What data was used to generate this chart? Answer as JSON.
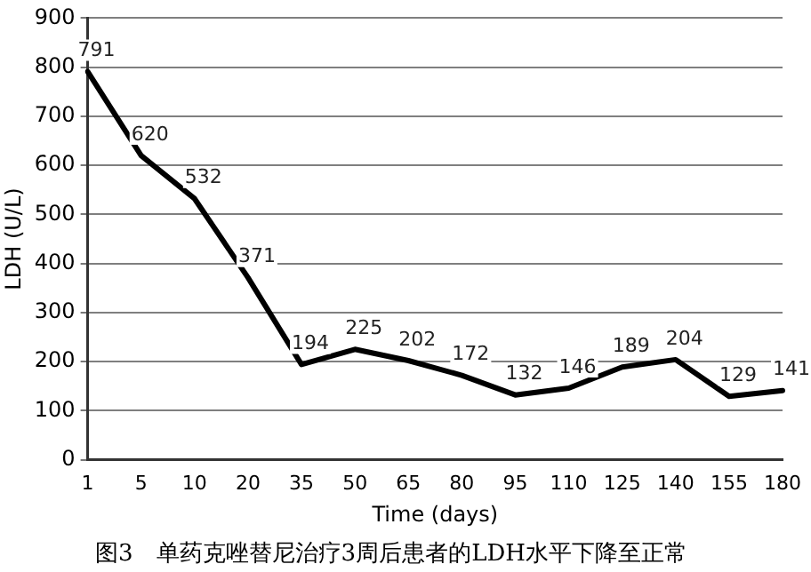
{
  "chart_data": {
    "type": "line",
    "title": "图3　单药克唑替尼治疗3周后患者的LDH水平下降至正常",
    "xlabel": "Time (days)",
    "ylabel": "LDH (U/L)",
    "categories": [
      "1",
      "5",
      "10",
      "20",
      "35",
      "50",
      "65",
      "80",
      "95",
      "110",
      "125",
      "140",
      "155",
      "180"
    ],
    "series": [
      {
        "color": "#000000",
        "values": [
          791,
          620,
          532,
          371,
          194,
          225,
          202,
          172,
          132,
          146,
          189,
          204,
          129,
          141
        ]
      }
    ],
    "ylim": [
      0,
      900
    ],
    "yticks": [
      0,
      100,
      200,
      300,
      400,
      500,
      600,
      700,
      800,
      900
    ],
    "grid": "y",
    "legend": false,
    "marker": "none",
    "line_style": "solid",
    "data_labels": true
  }
}
